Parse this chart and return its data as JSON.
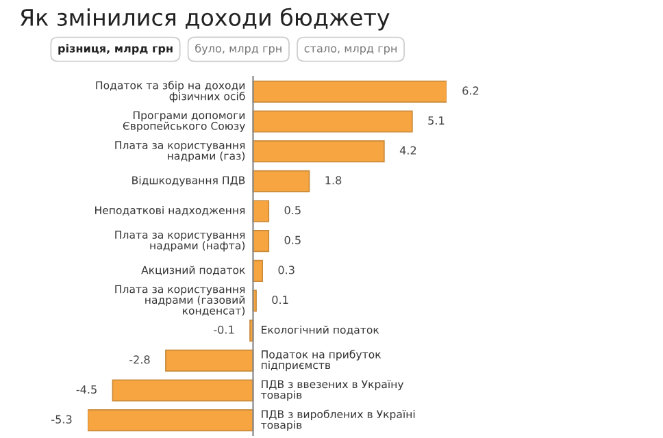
{
  "chart_data": {
    "type": "bar",
    "orientation": "horizontal",
    "title": "Як змінилися доходи бюджету",
    "annotations": [
      "різниця, млрд грн",
      "було, млрд грн",
      "стало, млрд грн"
    ],
    "categories": [
      "Податок та збір на доходи\nфізичних осіб",
      "Програми допомоги\nЄвропейського Союзу",
      "Плата за користування\nнадрами (газ)",
      "Відшкодування ПДВ",
      "Неподаткові надходження",
      "Плата за користування\nнадрами (нафта)",
      "Акцизний податок",
      "Плата за користування\nнадрами (газовий\nконденсат)",
      "Екологічний податок",
      "Податок на прибуток\nпідприємств",
      "ПДВ з ввезених в Україну\nтоварів",
      "ПДВ з вироблених в Україні\nтоварів"
    ],
    "values": [
      6.2,
      5.1,
      4.2,
      1.8,
      0.5,
      0.5,
      0.3,
      0.1,
      -0.1,
      -2.8,
      -4.5,
      -5.3
    ],
    "color": "#f7a541",
    "data_labels": true,
    "legend": false
  }
}
